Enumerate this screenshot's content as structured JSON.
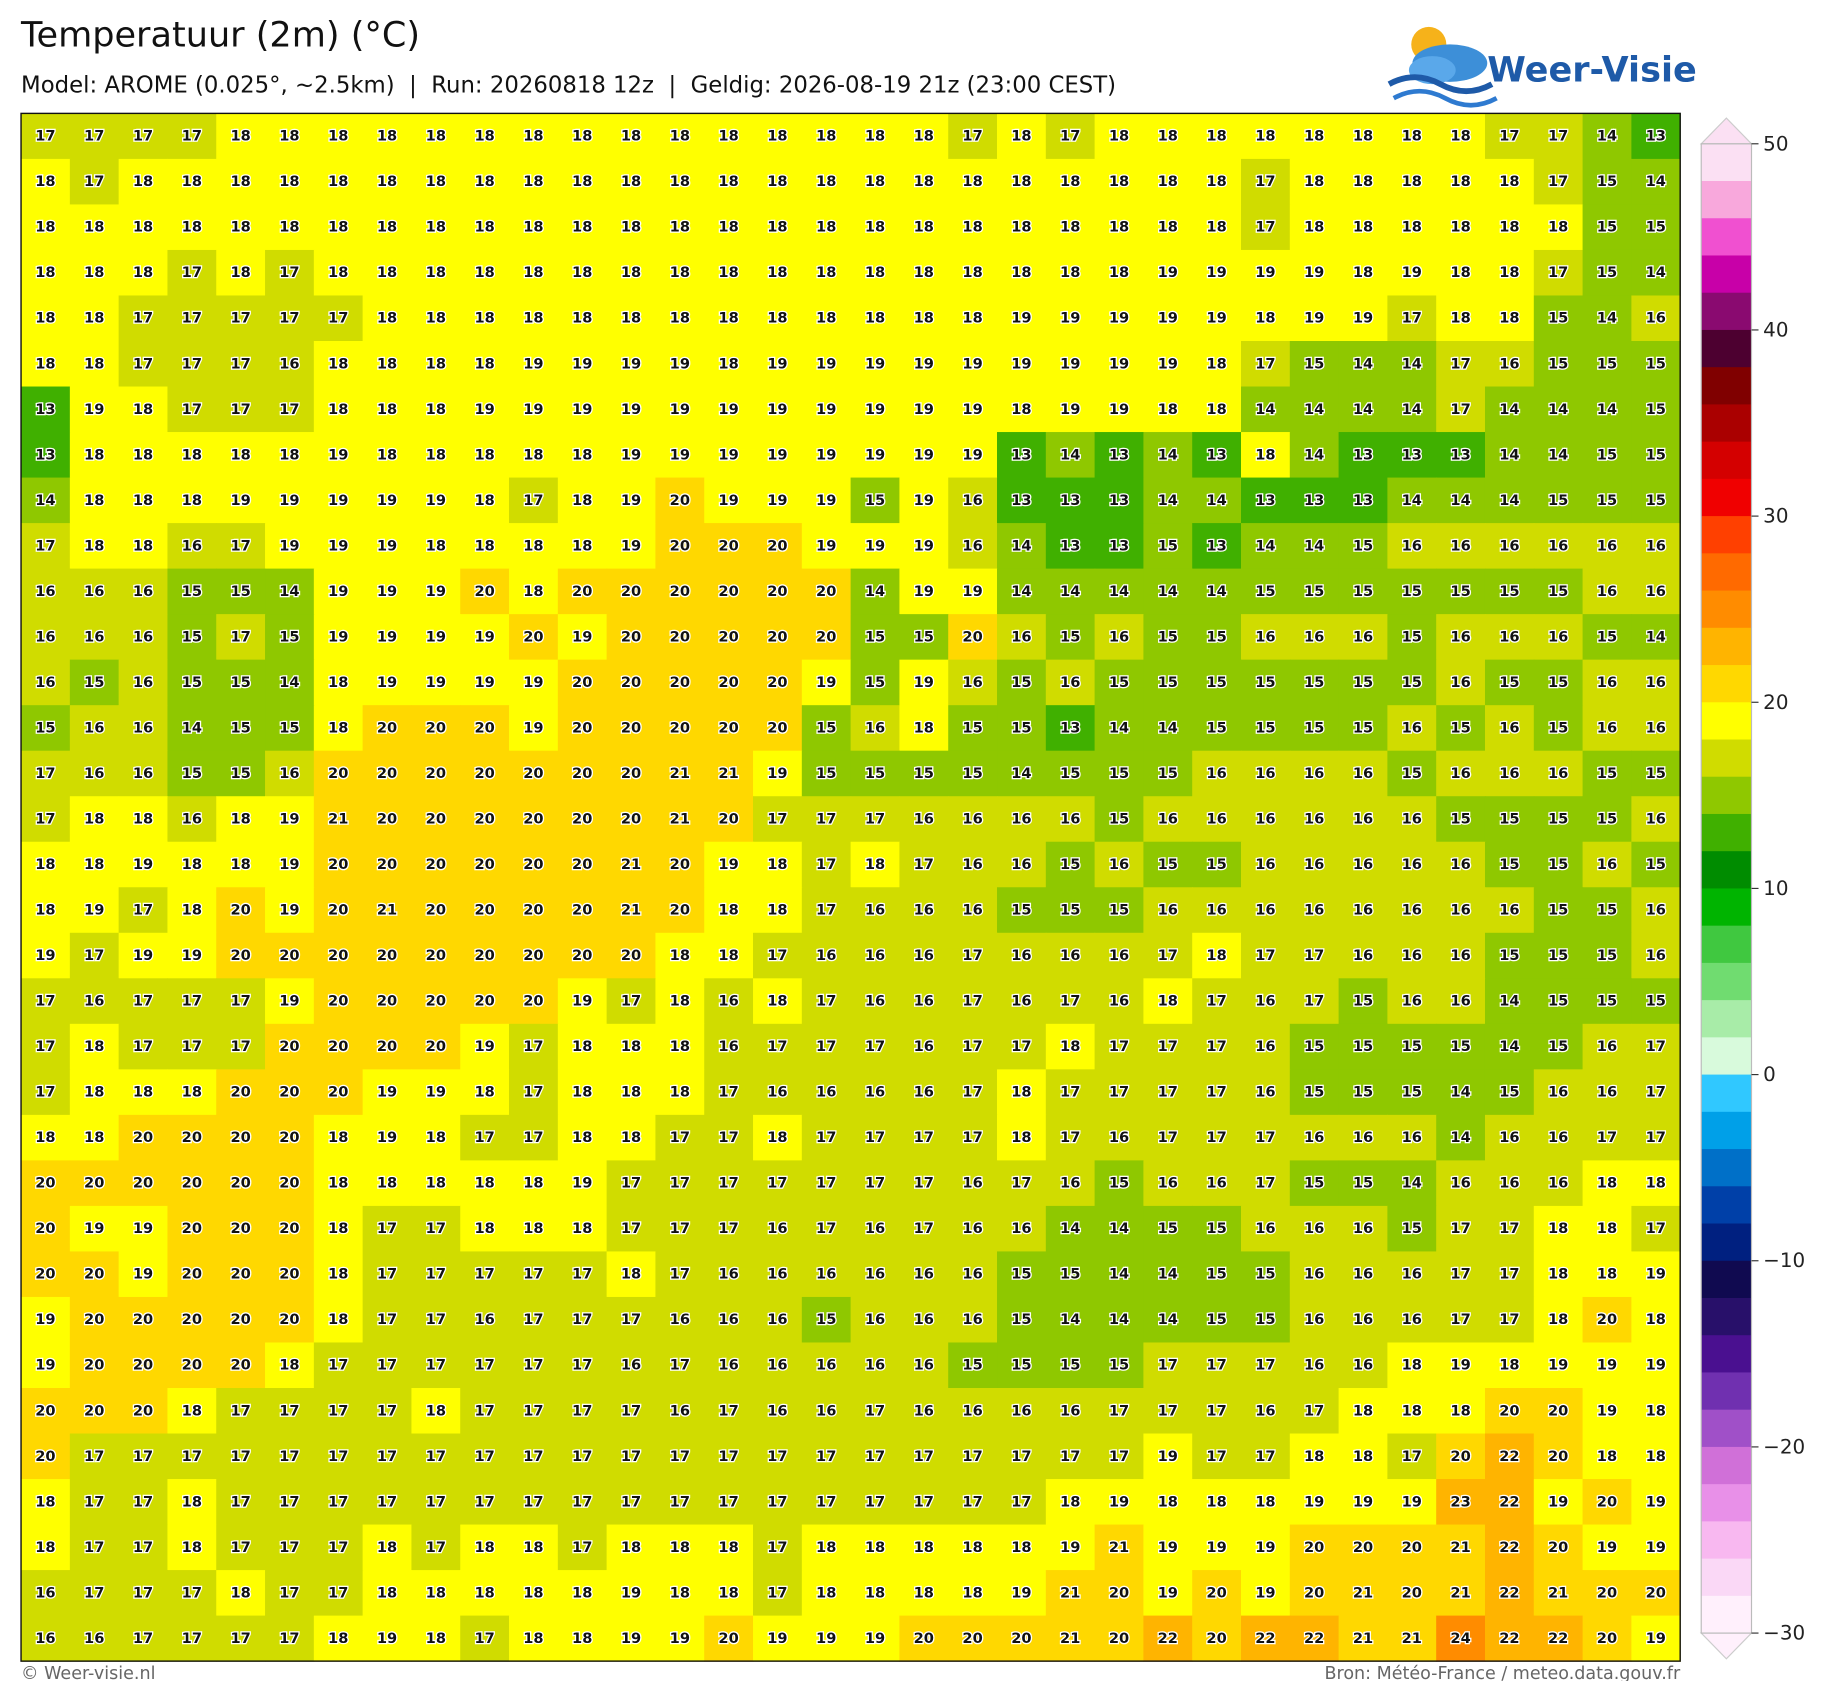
{
  "header": {
    "title": "Temperatuur (2m) (°C)",
    "subtitle": "Model: AROME (0.025°, ~2.5km)  |  Run: 20260818 12z  |  Geldig: 2026-08-19 21z (23:00 CEST)",
    "logo": "Weer-Visie"
  },
  "map": {
    "values": [
      [
        17,
        17,
        17,
        17,
        18,
        18,
        18,
        18,
        18,
        18,
        18,
        18,
        18,
        18,
        18,
        18,
        18,
        18,
        18,
        17,
        18,
        17,
        18,
        18,
        18,
        18,
        18,
        18,
        18,
        18,
        17,
        17,
        14,
        13
      ],
      [
        18,
        17,
        18,
        18,
        18,
        18,
        18,
        18,
        18,
        18,
        18,
        18,
        18,
        18,
        18,
        18,
        18,
        18,
        18,
        18,
        18,
        18,
        18,
        18,
        18,
        17,
        18,
        18,
        18,
        18,
        18,
        17,
        15,
        14
      ],
      [
        18,
        18,
        18,
        18,
        18,
        18,
        18,
        18,
        18,
        18,
        18,
        18,
        18,
        18,
        18,
        18,
        18,
        18,
        18,
        18,
        18,
        18,
        18,
        18,
        18,
        17,
        18,
        18,
        18,
        18,
        18,
        18,
        15,
        15
      ],
      [
        18,
        18,
        18,
        17,
        18,
        17,
        18,
        18,
        18,
        18,
        18,
        18,
        18,
        18,
        18,
        18,
        18,
        18,
        18,
        18,
        18,
        18,
        18,
        19,
        19,
        19,
        19,
        18,
        19,
        18,
        18,
        17,
        15,
        14
      ],
      [
        18,
        18,
        17,
        17,
        17,
        17,
        17,
        18,
        18,
        18,
        18,
        18,
        18,
        18,
        18,
        18,
        18,
        18,
        18,
        18,
        19,
        19,
        19,
        19,
        19,
        18,
        19,
        19,
        17,
        18,
        18,
        15,
        14,
        16
      ],
      [
        18,
        18,
        17,
        17,
        17,
        16,
        18,
        18,
        18,
        18,
        19,
        19,
        19,
        19,
        18,
        19,
        19,
        19,
        19,
        19,
        19,
        19,
        19,
        19,
        18,
        17,
        15,
        14,
        14,
        17,
        16,
        15,
        15,
        15
      ],
      [
        13,
        19,
        18,
        17,
        17,
        17,
        18,
        18,
        18,
        19,
        19,
        19,
        19,
        19,
        19,
        19,
        19,
        19,
        19,
        19,
        18,
        19,
        19,
        18,
        18,
        14,
        14,
        14,
        14,
        17,
        14,
        14,
        14,
        15
      ],
      [
        13,
        18,
        18,
        18,
        18,
        18,
        19,
        18,
        18,
        18,
        18,
        18,
        19,
        19,
        19,
        19,
        19,
        19,
        19,
        19,
        13,
        14,
        13,
        14,
        13,
        18,
        14,
        13,
        13,
        13,
        14,
        14,
        15,
        15
      ],
      [
        14,
        18,
        18,
        18,
        19,
        19,
        19,
        19,
        19,
        18,
        17,
        18,
        19,
        20,
        19,
        19,
        19,
        15,
        19,
        16,
        13,
        13,
        13,
        14,
        14,
        13,
        13,
        13,
        14,
        14,
        14,
        15,
        15,
        15
      ],
      [
        17,
        18,
        18,
        16,
        17,
        19,
        19,
        19,
        18,
        18,
        18,
        18,
        19,
        20,
        20,
        20,
        19,
        19,
        19,
        16,
        14,
        13,
        13,
        15,
        13,
        14,
        14,
        15,
        16,
        16,
        16,
        16,
        16,
        16
      ],
      [
        16,
        16,
        16,
        15,
        15,
        14,
        19,
        19,
        19,
        20,
        18,
        20,
        20,
        20,
        20,
        20,
        20,
        14,
        19,
        19,
        14,
        14,
        14,
        14,
        14,
        15,
        15,
        15,
        15,
        15,
        15,
        15,
        16,
        16
      ],
      [
        16,
        16,
        16,
        15,
        17,
        15,
        19,
        19,
        19,
        19,
        20,
        19,
        20,
        20,
        20,
        20,
        20,
        15,
        15,
        20,
        16,
        15,
        16,
        15,
        15,
        16,
        16,
        16,
        15,
        16,
        16,
        16,
        15,
        14
      ],
      [
        16,
        15,
        16,
        15,
        15,
        14,
        18,
        19,
        19,
        19,
        19,
        20,
        20,
        20,
        20,
        20,
        19,
        15,
        19,
        16,
        15,
        16,
        15,
        15,
        15,
        15,
        15,
        15,
        15,
        16,
        15,
        15,
        16,
        16
      ],
      [
        15,
        16,
        16,
        14,
        15,
        15,
        18,
        20,
        20,
        20,
        19,
        20,
        20,
        20,
        20,
        20,
        15,
        16,
        18,
        15,
        15,
        13,
        14,
        14,
        15,
        15,
        15,
        15,
        16,
        15,
        16,
        15,
        16,
        16
      ],
      [
        17,
        16,
        16,
        15,
        15,
        16,
        20,
        20,
        20,
        20,
        20,
        20,
        20,
        21,
        21,
        19,
        15,
        15,
        15,
        15,
        14,
        15,
        15,
        15,
        16,
        16,
        16,
        16,
        15,
        16,
        16,
        16,
        15,
        15
      ],
      [
        17,
        18,
        18,
        16,
        18,
        19,
        21,
        20,
        20,
        20,
        20,
        20,
        20,
        21,
        20,
        17,
        17,
        17,
        16,
        16,
        16,
        16,
        15,
        16,
        16,
        16,
        16,
        16,
        16,
        15,
        15,
        15,
        15,
        16
      ],
      [
        18,
        18,
        19,
        18,
        18,
        19,
        20,
        20,
        20,
        20,
        20,
        20,
        21,
        20,
        19,
        18,
        17,
        18,
        17,
        16,
        16,
        15,
        16,
        15,
        15,
        16,
        16,
        16,
        16,
        16,
        15,
        15,
        16,
        15
      ],
      [
        18,
        19,
        17,
        18,
        20,
        19,
        20,
        21,
        20,
        20,
        20,
        20,
        21,
        20,
        18,
        18,
        17,
        16,
        16,
        16,
        15,
        15,
        15,
        16,
        16,
        16,
        16,
        16,
        16,
        16,
        16,
        15,
        15,
        16
      ],
      [
        19,
        17,
        19,
        19,
        20,
        20,
        20,
        20,
        20,
        20,
        20,
        20,
        20,
        18,
        18,
        17,
        16,
        16,
        16,
        17,
        16,
        16,
        16,
        17,
        18,
        17,
        17,
        16,
        16,
        16,
        15,
        15,
        15,
        16
      ],
      [
        17,
        16,
        17,
        17,
        17,
        19,
        20,
        20,
        20,
        20,
        20,
        19,
        17,
        18,
        16,
        18,
        17,
        16,
        16,
        17,
        16,
        17,
        16,
        18,
        17,
        16,
        17,
        15,
        16,
        16,
        14,
        15,
        15,
        15
      ],
      [
        17,
        18,
        17,
        17,
        17,
        20,
        20,
        20,
        20,
        19,
        17,
        18,
        18,
        18,
        16,
        17,
        17,
        17,
        16,
        17,
        17,
        18,
        17,
        17,
        17,
        16,
        15,
        15,
        15,
        15,
        14,
        15,
        16,
        17
      ],
      [
        17,
        18,
        18,
        18,
        20,
        20,
        20,
        19,
        19,
        18,
        17,
        18,
        18,
        18,
        17,
        16,
        16,
        16,
        16,
        17,
        18,
        17,
        17,
        17,
        17,
        16,
        15,
        15,
        15,
        14,
        15,
        16,
        16,
        17
      ],
      [
        18,
        18,
        20,
        20,
        20,
        20,
        18,
        19,
        18,
        17,
        17,
        18,
        18,
        17,
        17,
        18,
        17,
        17,
        17,
        17,
        18,
        17,
        16,
        17,
        17,
        17,
        16,
        16,
        16,
        14,
        16,
        16,
        17,
        17
      ],
      [
        20,
        20,
        20,
        20,
        20,
        20,
        18,
        18,
        18,
        18,
        18,
        19,
        17,
        17,
        17,
        17,
        17,
        17,
        17,
        16,
        17,
        16,
        15,
        16,
        16,
        17,
        15,
        15,
        14,
        16,
        16,
        16,
        18,
        18
      ],
      [
        20,
        19,
        19,
        20,
        20,
        20,
        18,
        17,
        17,
        18,
        18,
        18,
        17,
        17,
        17,
        16,
        17,
        16,
        17,
        16,
        16,
        14,
        14,
        15,
        15,
        16,
        16,
        16,
        15,
        17,
        17,
        18,
        18,
        17
      ],
      [
        20,
        20,
        19,
        20,
        20,
        20,
        18,
        17,
        17,
        17,
        17,
        17,
        18,
        17,
        16,
        16,
        16,
        16,
        16,
        16,
        15,
        15,
        14,
        14,
        15,
        15,
        16,
        16,
        16,
        17,
        17,
        18,
        18,
        19
      ],
      [
        19,
        20,
        20,
        20,
        20,
        20,
        18,
        17,
        17,
        16,
        17,
        17,
        17,
        16,
        16,
        16,
        15,
        16,
        16,
        16,
        15,
        14,
        14,
        14,
        15,
        15,
        16,
        16,
        16,
        17,
        17,
        18,
        20,
        18
      ],
      [
        19,
        20,
        20,
        20,
        20,
        18,
        17,
        17,
        17,
        17,
        17,
        17,
        16,
        17,
        16,
        16,
        16,
        16,
        16,
        15,
        15,
        15,
        15,
        17,
        17,
        17,
        16,
        16,
        18,
        19,
        18,
        19,
        19,
        19
      ],
      [
        20,
        20,
        20,
        18,
        17,
        17,
        17,
        17,
        18,
        17,
        17,
        17,
        17,
        16,
        17,
        16,
        16,
        17,
        16,
        16,
        16,
        16,
        17,
        17,
        17,
        16,
        17,
        18,
        18,
        18,
        20,
        20,
        19,
        18
      ],
      [
        20,
        17,
        17,
        17,
        17,
        17,
        17,
        17,
        17,
        17,
        17,
        17,
        17,
        17,
        17,
        17,
        17,
        17,
        17,
        17,
        17,
        17,
        17,
        19,
        17,
        17,
        18,
        18,
        17,
        20,
        22,
        20,
        18,
        18
      ],
      [
        18,
        17,
        17,
        18,
        17,
        17,
        17,
        17,
        17,
        17,
        17,
        17,
        17,
        17,
        17,
        17,
        17,
        17,
        17,
        17,
        17,
        18,
        19,
        18,
        18,
        18,
        19,
        19,
        19,
        23,
        22,
        19,
        20,
        19
      ],
      [
        18,
        17,
        17,
        18,
        17,
        17,
        17,
        18,
        17,
        18,
        18,
        17,
        18,
        18,
        18,
        17,
        18,
        18,
        18,
        18,
        18,
        19,
        21,
        19,
        19,
        19,
        20,
        20,
        20,
        21,
        22,
        20,
        19,
        19
      ],
      [
        16,
        17,
        17,
        17,
        18,
        17,
        17,
        18,
        18,
        18,
        18,
        18,
        19,
        18,
        18,
        17,
        18,
        18,
        18,
        18,
        19,
        21,
        20,
        19,
        20,
        19,
        20,
        21,
        20,
        21,
        22,
        21,
        20,
        20
      ],
      [
        16,
        16,
        17,
        17,
        17,
        17,
        18,
        19,
        18,
        17,
        18,
        18,
        19,
        19,
        20,
        19,
        19,
        19,
        20,
        20,
        20,
        21,
        20,
        22,
        20,
        22,
        22,
        21,
        21,
        24,
        22,
        22,
        20,
        19
      ]
    ]
  },
  "colorbar": {
    "lim": [
      -30,
      50
    ],
    "ticks": [
      {
        "value": -30,
        "label": "−30"
      },
      {
        "value": -20,
        "label": "−20"
      },
      {
        "value": -10,
        "label": "−10"
      },
      0,
      10,
      20,
      30,
      40,
      50
    ],
    "colors": [
      "#fbe0f3",
      "#f8a8dc",
      "#f050d0",
      "#c800a8",
      "#8a0a70",
      "#4d0030",
      "#800000",
      "#aa0000",
      "#d40000",
      "#f00000",
      "#ff4000",
      "#ff6a00",
      "#ff8c00",
      "#ffb400",
      "#ffd800",
      "#ffff00",
      "#d0dc00",
      "#8fc800",
      "#40b000",
      "#008c00",
      "#00b400",
      "#40c840",
      "#70dc70",
      "#a8eca8",
      "#d8fadc",
      "#30c8ff",
      "#00a0e8",
      "#0070c8",
      "#0040a8",
      "#002080",
      "#100a50",
      "#28106a",
      "#4a1090",
      "#7030b0",
      "#a050c8",
      "#d070d8",
      "#e890e8",
      "#f8b8f0",
      "#fad8f6",
      "#fff0fc"
    ]
  },
  "footer": {
    "left": "© Weer-visie.nl",
    "right": "Bron: Météo-France / meteo.data.gouv.fr"
  }
}
